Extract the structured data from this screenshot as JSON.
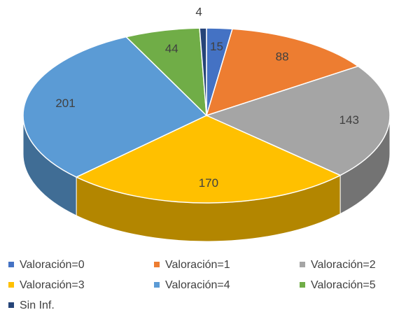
{
  "chart_data": {
    "type": "pie3d",
    "categories": [
      "Valoración=0",
      "Valoración=1",
      "Valoración=2",
      "Valoración=3",
      "Valoración=4",
      "Valoración=5",
      "Sin Inf."
    ],
    "values": [
      15,
      88,
      143,
      170,
      201,
      44,
      4
    ],
    "colors": [
      "#4472c4",
      "#ed7d31",
      "#a5a5a5",
      "#ffc000",
      "#5b9bd5",
      "#70ad47",
      "#264478"
    ],
    "legend": "bottom"
  }
}
